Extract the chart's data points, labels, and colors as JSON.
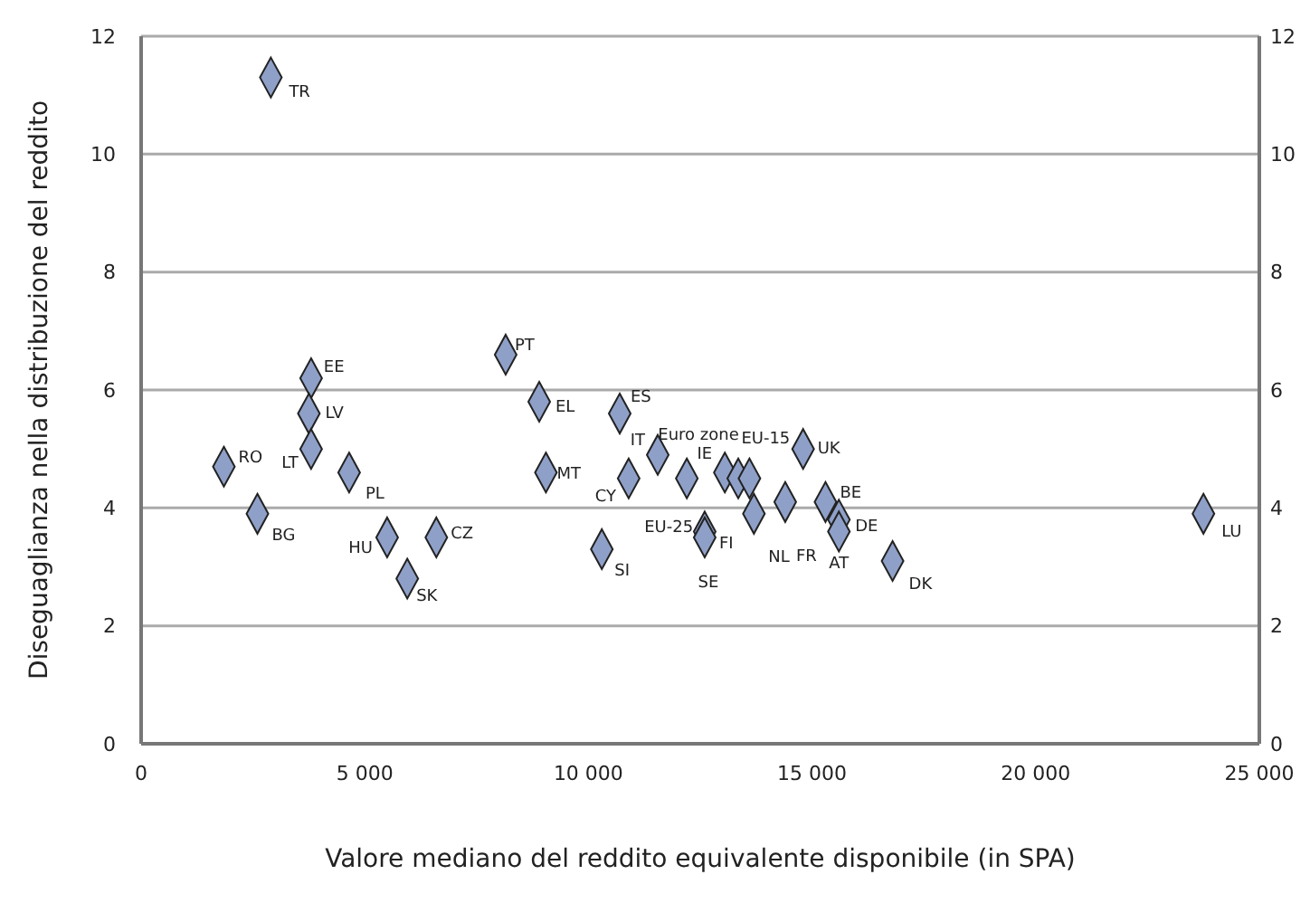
{
  "chart_data": {
    "type": "scatter",
    "xlabel": "Valore mediano del reddito equivalente disponibile (in SPA)",
    "ylabel": "Diseguaglianza nella distribuzione del reddito",
    "x": [
      2900,
      1850,
      2600,
      3800,
      3750,
      3800,
      4650,
      5500,
      6600,
      5950,
      8150,
      8900,
      9050,
      10300,
      10700,
      10900,
      11550,
      12200,
      12600,
      12600,
      13050,
      13350,
      13600,
      13700,
      14400,
      14800,
      15300,
      15600,
      15600,
      16800,
      23750
    ],
    "series": [
      {
        "color": "#8fa0c8",
        "values": [
          11.3,
          4.7,
          3.9,
          6.2,
          5.6,
          5.0,
          4.6,
          3.5,
          3.5,
          2.8,
          6.6,
          5.8,
          4.6,
          3.3,
          5.6,
          4.5,
          4.9,
          4.5,
          3.6,
          3.5,
          4.6,
          4.5,
          4.5,
          3.9,
          4.1,
          5.0,
          4.1,
          3.8,
          3.6,
          3.1,
          3.9
        ]
      }
    ],
    "marker": "diamond",
    "xlim": [
      0,
      25000
    ],
    "xticks": [
      0,
      {
        "value": 5000,
        "label": "5 000"
      },
      {
        "value": 10000,
        "label": "10 000"
      },
      {
        "value": 15000,
        "label": "15 000"
      },
      {
        "value": 20000,
        "label": "20 000"
      },
      {
        "value": 25000,
        "label": "25 000"
      }
    ],
    "ylim": [
      0,
      12
    ],
    "yticks": [
      0,
      2,
      4,
      6,
      8,
      10,
      12
    ],
    "y2lim": [
      0,
      12
    ],
    "y2ticks": [
      0,
      2,
      4,
      6,
      8,
      10,
      12
    ],
    "grid": "y",
    "legend": false,
    "annotations": [
      {
        "text": "TR",
        "x": 2900,
        "y": 11.3
      },
      {
        "text": "RO",
        "x": 1850,
        "y": 4.7
      },
      {
        "text": "BG",
        "x": 2600,
        "y": 3.9
      },
      {
        "text": "EE",
        "x": 3800,
        "y": 6.2
      },
      {
        "text": "LV",
        "x": 3750,
        "y": 5.6
      },
      {
        "text": "LT",
        "x": 3800,
        "y": 5.0
      },
      {
        "text": "PL",
        "x": 4650,
        "y": 4.6
      },
      {
        "text": "HU",
        "x": 5500,
        "y": 3.5
      },
      {
        "text": "CZ",
        "x": 6600,
        "y": 3.5
      },
      {
        "text": "SK",
        "x": 5950,
        "y": 2.8
      },
      {
        "text": "PT",
        "x": 8150,
        "y": 6.6
      },
      {
        "text": "EL",
        "x": 8900,
        "y": 5.8
      },
      {
        "text": "MT",
        "x": 9050,
        "y": 4.6
      },
      {
        "text": "SI",
        "x": 10300,
        "y": 3.3
      },
      {
        "text": "ES",
        "x": 10700,
        "y": 5.6
      },
      {
        "text": "CY",
        "x": 10900,
        "y": 4.5
      },
      {
        "text": "IT",
        "x": 11550,
        "y": 4.9
      },
      {
        "text": "EU-25",
        "x": 12200,
        "y": 4.5
      },
      {
        "text": "FI",
        "x": 12600,
        "y": 3.6
      },
      {
        "text": "SE",
        "x": 12600,
        "y": 3.5
      },
      {
        "text": "IE",
        "x": 13050,
        "y": 4.6
      },
      {
        "text": "Euro zone",
        "x": 13350,
        "y": 4.5
      },
      {
        "text": "EU-15",
        "x": 13600,
        "y": 4.5
      },
      {
        "text": "NL",
        "x": 13700,
        "y": 3.9
      },
      {
        "text": "FR",
        "x": 14400,
        "y": 4.1
      },
      {
        "text": "UK",
        "x": 14800,
        "y": 5.0
      },
      {
        "text": "BE",
        "x": 15300,
        "y": 4.1
      },
      {
        "text": "DE",
        "x": 15600,
        "y": 3.8
      },
      {
        "text": "AT",
        "x": 15600,
        "y": 3.6
      },
      {
        "text": "DK",
        "x": 16800,
        "y": 3.1
      },
      {
        "text": "LU",
        "x": 23750,
        "y": 3.9
      }
    ]
  }
}
